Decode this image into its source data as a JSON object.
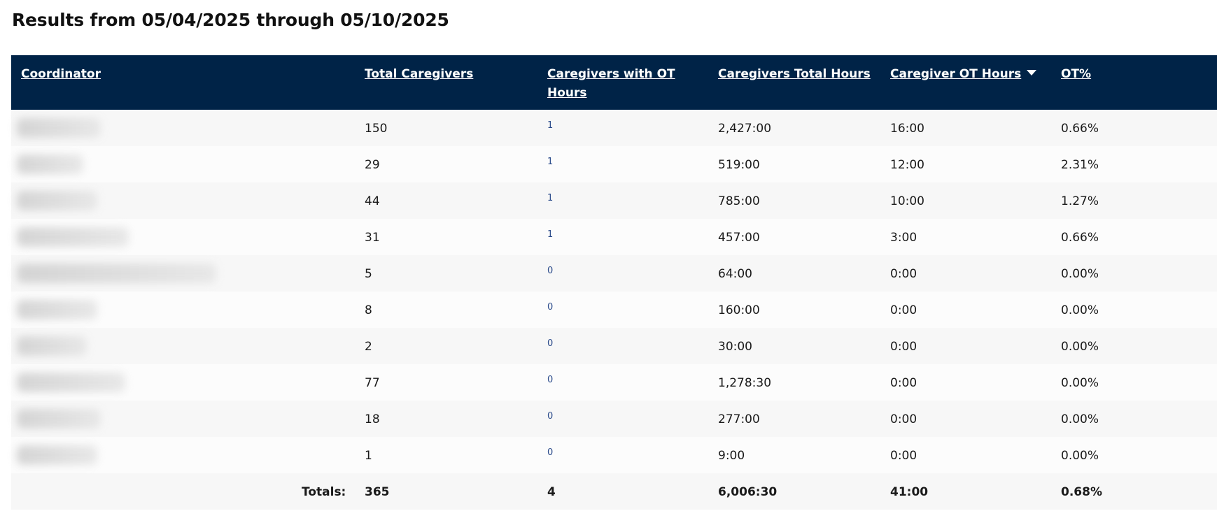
{
  "page": {
    "title": "Results from 05/04/2025 through 05/10/2025"
  },
  "table": {
    "headers": {
      "coordinator": "Coordinator",
      "total_caregivers": "Total Caregivers",
      "caregivers_with_ot": "Caregivers with OT Hours",
      "caregivers_total_hours": "Caregivers Total Hours",
      "caregiver_ot_hours": "Caregiver OT Hours",
      "ot_pct": "OT%"
    },
    "sorted_column": "caregiver_ot_hours",
    "sort_direction": "descending",
    "rows": [
      {
        "total_caregivers": "150",
        "caregivers_with_ot": "1",
        "caregivers_total_hours": "2,427:00",
        "caregiver_ot_hours": "16:00",
        "ot_pct": "0.66%"
      },
      {
        "total_caregivers": "29",
        "caregivers_with_ot": "1",
        "caregivers_total_hours": "519:00",
        "caregiver_ot_hours": "12:00",
        "ot_pct": "2.31%"
      },
      {
        "total_caregivers": "44",
        "caregivers_with_ot": "1",
        "caregivers_total_hours": "785:00",
        "caregiver_ot_hours": "10:00",
        "ot_pct": "1.27%"
      },
      {
        "total_caregivers": "31",
        "caregivers_with_ot": "1",
        "caregivers_total_hours": "457:00",
        "caregiver_ot_hours": "3:00",
        "ot_pct": "0.66%"
      },
      {
        "total_caregivers": "5",
        "caregivers_with_ot": "0",
        "caregivers_total_hours": "64:00",
        "caregiver_ot_hours": "0:00",
        "ot_pct": "0.00%"
      },
      {
        "total_caregivers": "8",
        "caregivers_with_ot": "0",
        "caregivers_total_hours": "160:00",
        "caregiver_ot_hours": "0:00",
        "ot_pct": "0.00%"
      },
      {
        "total_caregivers": "2",
        "caregivers_with_ot": "0",
        "caregivers_total_hours": "30:00",
        "caregiver_ot_hours": "0:00",
        "ot_pct": "0.00%"
      },
      {
        "total_caregivers": "77",
        "caregivers_with_ot": "0",
        "caregivers_total_hours": "1,278:30",
        "caregiver_ot_hours": "0:00",
        "ot_pct": "0.00%"
      },
      {
        "total_caregivers": "18",
        "caregivers_with_ot": "0",
        "caregivers_total_hours": "277:00",
        "caregiver_ot_hours": "0:00",
        "ot_pct": "0.00%"
      },
      {
        "total_caregivers": "1",
        "caregivers_with_ot": "0",
        "caregivers_total_hours": "9:00",
        "caregiver_ot_hours": "0:00",
        "ot_pct": "0.00%"
      }
    ],
    "totals": {
      "label": "Totals:",
      "total_caregivers": "365",
      "caregivers_with_ot": "4",
      "caregivers_total_hours": "6,006:30",
      "caregiver_ot_hours": "41:00",
      "ot_pct": "0.68%"
    }
  }
}
